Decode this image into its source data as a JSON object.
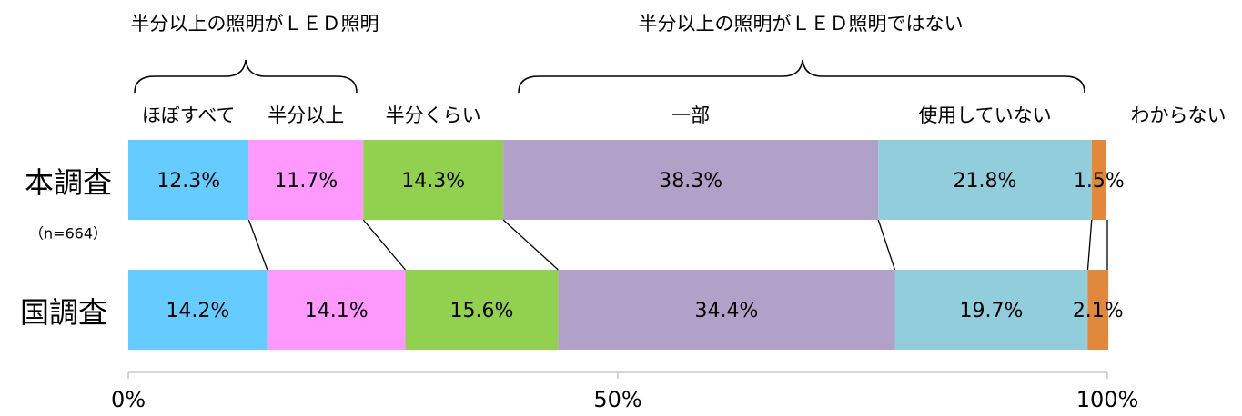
{
  "chart_data": {
    "type": "stacked_barh",
    "annotations": [
      "半分以上の照明がＬＥＤ照明",
      "半分以上の照明がＬＥＤ照明ではない"
    ],
    "categories": [
      "本調査",
      "国調査"
    ],
    "subtitle": "（n=664）",
    "series": [
      {
        "name": "ほぼすべて",
        "color": "#66ccff",
        "values": [
          12.3,
          14.2
        ],
        "value_labels": [
          "12.3%",
          "14.2%"
        ]
      },
      {
        "name": "半分以上",
        "color": "#ff99ff",
        "values": [
          11.7,
          14.1
        ],
        "value_labels": [
          "11.7%",
          "14.1%"
        ]
      },
      {
        "name": "半分くらい",
        "color": "#92d050",
        "values": [
          14.3,
          15.6
        ],
        "value_labels": [
          "14.3%",
          "15.6%"
        ]
      },
      {
        "name": "一部",
        "color": "#b1a0c7",
        "values": [
          38.3,
          34.4
        ],
        "value_labels": [
          "38.3%",
          "34.4%"
        ]
      },
      {
        "name": "使用していない",
        "color": "#92cddc",
        "values": [
          21.8,
          19.7
        ],
        "value_labels": [
          "21.8%",
          "19.7%"
        ]
      },
      {
        "name": "わからない",
        "color": "#e0893c",
        "values": [
          1.5,
          2.1
        ],
        "value_labels": [
          "1.5%",
          "2.1%"
        ]
      }
    ],
    "xlim": [
      0,
      100
    ],
    "xticks": [
      {
        "value": 0,
        "label": "0%"
      },
      {
        "value": 50,
        "label": "50%"
      },
      {
        "value": 100,
        "label": "100%"
      }
    ]
  }
}
